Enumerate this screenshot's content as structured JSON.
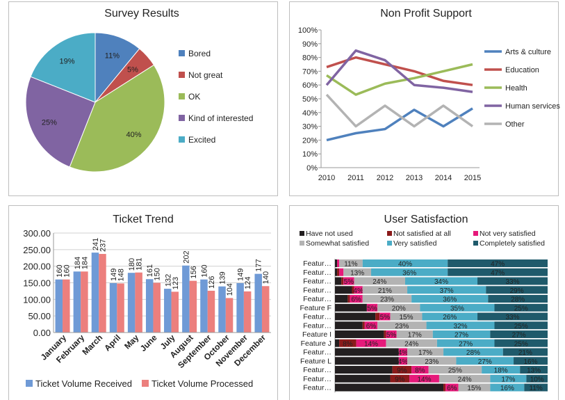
{
  "chart_data": [
    {
      "type": "pie",
      "title": "Survey Results",
      "labels": [
        "Bored",
        "Not great",
        "OK",
        "Kind of interested",
        "Excited"
      ],
      "values": [
        11,
        5,
        40,
        25,
        19
      ],
      "value_labels": [
        "11%",
        "5%",
        "40%",
        "25%",
        "19%"
      ],
      "colors": [
        "#4f81bd",
        "#c0504d",
        "#9bbb59",
        "#8064a2",
        "#4bacc6"
      ],
      "legend": "right"
    },
    {
      "type": "line",
      "title": "Non Profit Support",
      "x": [
        "2010",
        "2011",
        "2012",
        "2013",
        "2014",
        "2015"
      ],
      "ylim": [
        0,
        100
      ],
      "yticks": [
        "0%",
        "10%",
        "20%",
        "30%",
        "40%",
        "50%",
        "60%",
        "70%",
        "80%",
        "90%",
        "100%"
      ],
      "series": [
        {
          "name": "Arts & culture",
          "color": "#4f81bd",
          "values": [
            20,
            25,
            28,
            42,
            30,
            43
          ]
        },
        {
          "name": "Education",
          "color": "#c0504d",
          "values": [
            73,
            80,
            75,
            70,
            63,
            60
          ]
        },
        {
          "name": "Health",
          "color": "#9bbb59",
          "values": [
            67,
            53,
            61,
            65,
            70,
            75
          ]
        },
        {
          "name": "Human services",
          "color": "#8064a2",
          "values": [
            60,
            85,
            78,
            60,
            58,
            55
          ]
        },
        {
          "name": "Other",
          "color": "#b3b3b3",
          "values": [
            53,
            30,
            45,
            30,
            45,
            30
          ]
        }
      ],
      "legend": "right"
    },
    {
      "type": "bar",
      "title": "Ticket Trend",
      "categories": [
        "January",
        "February",
        "March",
        "April",
        "May",
        "June",
        "July",
        "August",
        "September",
        "October",
        "November",
        "December"
      ],
      "ylim": [
        0,
        300
      ],
      "yticks": [
        "0.00",
        "50.00",
        "100.00",
        "150.00",
        "200.00",
        "250.00",
        "300.00"
      ],
      "series": [
        {
          "name": "Ticket Volume Received",
          "color": "#6f9ad6",
          "values": [
            160,
            184,
            241,
            149,
            180,
            161,
            132,
            202,
            160,
            139,
            149,
            177
          ]
        },
        {
          "name": "Ticket Volume Processed",
          "color": "#ec7f7d",
          "values": [
            160,
            184,
            237,
            148,
            181,
            150,
            123,
            156,
            126,
            104,
            124,
            140
          ]
        }
      ],
      "legend": "bottom"
    },
    {
      "type": "bar",
      "orientation": "horizontal-stacked-100",
      "title": "User Satisfaction",
      "categories": [
        "Featur…",
        "Featur…",
        "Featur…",
        "Featur…",
        "Featur…",
        "Feature F",
        "Featur…",
        "Featur…",
        "Feature I",
        "Feature J",
        "Featur…",
        "Feature L",
        "Featur…",
        "Featur…",
        "Featur…"
      ],
      "series": [
        {
          "name": "Have not used",
          "color": "#231f20",
          "values": [
            1,
            1,
            3,
            8,
            6,
            15,
            19,
            13,
            23,
            2,
            30,
            30,
            27,
            26,
            51
          ]
        },
        {
          "name": "Not satisfied at all",
          "color": "#8b1a1a",
          "values": [
            0,
            1,
            1,
            1,
            1,
            0,
            2,
            1,
            1,
            8,
            0,
            0,
            9,
            9,
            1
          ]
        },
        {
          "name": "Not very satisfied",
          "color": "#e6197a",
          "values": [
            1,
            2,
            5,
            4,
            6,
            5,
            5,
            6,
            5,
            14,
            4,
            4,
            8,
            14,
            6
          ]
        },
        {
          "name": "Somewhat satisfied",
          "color": "#b3b3b3",
          "values": [
            11,
            13,
            24,
            21,
            23,
            20,
            15,
            23,
            17,
            24,
            17,
            23,
            25,
            24,
            15
          ]
        },
        {
          "name": "Very satisfied",
          "color": "#4bacc6",
          "values": [
            40,
            36,
            34,
            37,
            36,
            35,
            26,
            32,
            27,
            27,
            28,
            27,
            18,
            17,
            16
          ]
        },
        {
          "name": "Completely satisfied",
          "color": "#1f5a6b",
          "values": [
            47,
            47,
            33,
            29,
            28,
            25,
            33,
            25,
            27,
            25,
            21,
            16,
            13,
            10,
            11
          ]
        }
      ],
      "legend": "top"
    }
  ]
}
